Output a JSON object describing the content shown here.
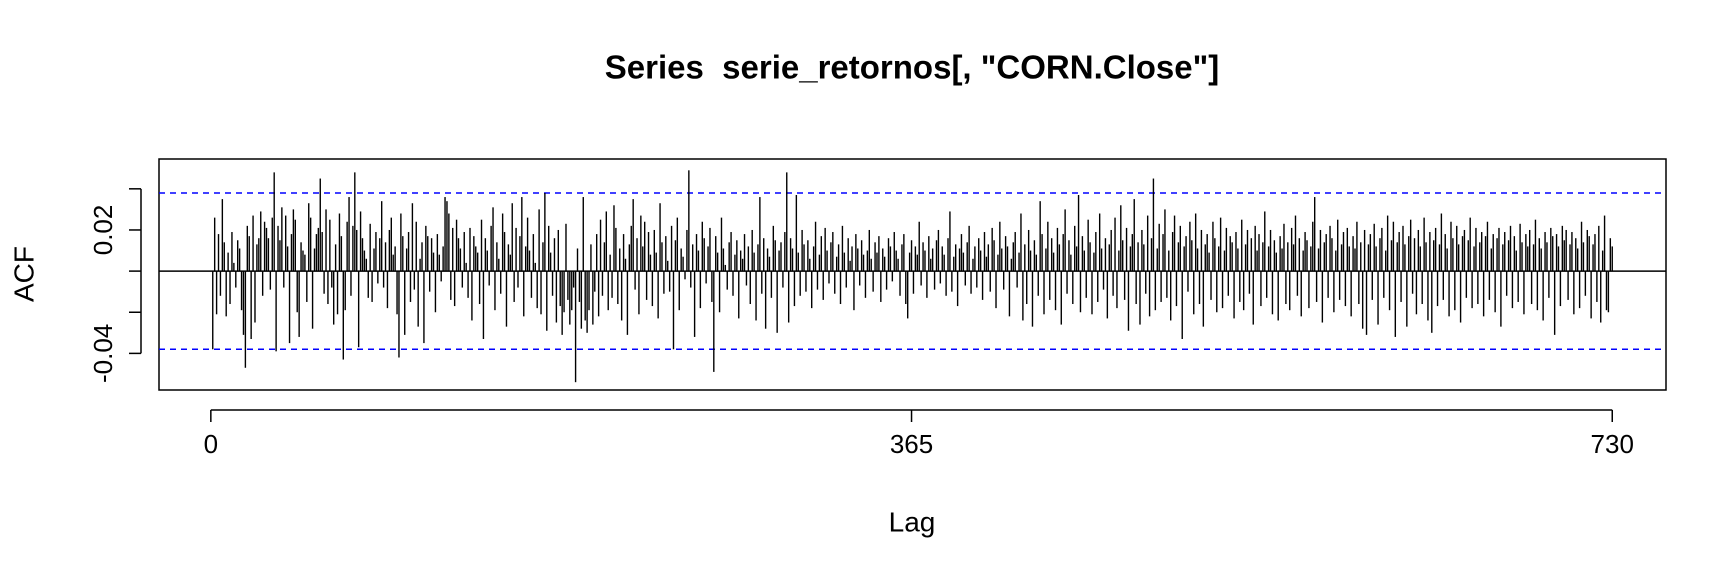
{
  "chart_data": {
    "type": "acf",
    "title": "Series  serie_retornos[, \"CORN.Close\"]",
    "x_label": "Lag",
    "y_label": "ACF",
    "xlim": [
      -27,
      758
    ],
    "ylim": [
      -0.0578,
      0.0545
    ],
    "xticks": [
      0,
      365,
      730
    ],
    "yticks": [
      -0.04,
      0.02
    ],
    "y_minor_ticks": [
      -0.02,
      0,
      0.04
    ],
    "ci_lines": [
      0.038,
      -0.038
    ],
    "ci_color": "#0000ff",
    "color": "#000000",
    "x": [
      1,
      2,
      3,
      4,
      5,
      6,
      7,
      8,
      9,
      10,
      11,
      12,
      13,
      14,
      15,
      16,
      17,
      18,
      19,
      20,
      21,
      22,
      23,
      24,
      25,
      26,
      27,
      28,
      29,
      30,
      31,
      32,
      33,
      34,
      35,
      36,
      37,
      38,
      39,
      40,
      41,
      42,
      43,
      44,
      45,
      46,
      47,
      48,
      49,
      50,
      51,
      52,
      53,
      54,
      55,
      56,
      57,
      58,
      59,
      60,
      61,
      62,
      63,
      64,
      65,
      66,
      67,
      68,
      69,
      70,
      71,
      72,
      73,
      74,
      75,
      76,
      77,
      78,
      79,
      80,
      81,
      82,
      83,
      84,
      85,
      86,
      87,
      88,
      89,
      90,
      91,
      92,
      93,
      94,
      95,
      96,
      97,
      98,
      99,
      100,
      101,
      102,
      103,
      104,
      105,
      106,
      107,
      108,
      109,
      110,
      111,
      112,
      113,
      114,
      115,
      116,
      117,
      118,
      119,
      120,
      121,
      122,
      123,
      124,
      125,
      126,
      127,
      128,
      129,
      130,
      131,
      132,
      133,
      134,
      135,
      136,
      137,
      138,
      139,
      140,
      141,
      142,
      143,
      144,
      145,
      146,
      147,
      148,
      149,
      150,
      151,
      152,
      153,
      154,
      155,
      156,
      157,
      158,
      159,
      160,
      161,
      162,
      163,
      164,
      165,
      166,
      167,
      168,
      169,
      170,
      171,
      172,
      173,
      174,
      175,
      176,
      177,
      178,
      179,
      180,
      181,
      182,
      183,
      184,
      185,
      186,
      187,
      188,
      189,
      190,
      191,
      192,
      193,
      194,
      195,
      196,
      197,
      198,
      199,
      200,
      201,
      202,
      203,
      204,
      205,
      206,
      207,
      208,
      209,
      210,
      211,
      212,
      213,
      214,
      215,
      216,
      217,
      218,
      219,
      220,
      221,
      222,
      223,
      224,
      225,
      226,
      227,
      228,
      229,
      230,
      231,
      232,
      233,
      234,
      235,
      236,
      237,
      238,
      239,
      240,
      241,
      242,
      243,
      244,
      245,
      246,
      247,
      248,
      249,
      250,
      251,
      252,
      253,
      254,
      255,
      256,
      257,
      258,
      259,
      260,
      261,
      262,
      263,
      264,
      265,
      266,
      267,
      268,
      269,
      270,
      271,
      272,
      273,
      274,
      275,
      276,
      277,
      278,
      279,
      280,
      281,
      282,
      283,
      284,
      285,
      286,
      287,
      288,
      289,
      290,
      291,
      292,
      293,
      294,
      295,
      296,
      297,
      298,
      299,
      300,
      301,
      302,
      303,
      304,
      305,
      306,
      307,
      308,
      309,
      310,
      311,
      312,
      313,
      314,
      315,
      316,
      317,
      318,
      319,
      320,
      321,
      322,
      323,
      324,
      325,
      326,
      327,
      328,
      329,
      330,
      331,
      332,
      333,
      334,
      335,
      336,
      337,
      338,
      339,
      340,
      341,
      342,
      343,
      344,
      345,
      346,
      347,
      348,
      349,
      350,
      351,
      352,
      353,
      354,
      355,
      356,
      357,
      358,
      359,
      360,
      361,
      362,
      363,
      364,
      365,
      366,
      367,
      368,
      369,
      370,
      371,
      372,
      373,
      374,
      375,
      376,
      377,
      378,
      379,
      380,
      381,
      382,
      383,
      384,
      385,
      386,
      387,
      388,
      389,
      390,
      391,
      392,
      393,
      394,
      395,
      396,
      397,
      398,
      399,
      400,
      401,
      402,
      403,
      404,
      405,
      406,
      407,
      408,
      409,
      410,
      411,
      412,
      413,
      414,
      415,
      416,
      417,
      418,
      419,
      420,
      421,
      422,
      423,
      424,
      425,
      426,
      427,
      428,
      429,
      430,
      431,
      432,
      433,
      434,
      435,
      436,
      437,
      438,
      439,
      440,
      441,
      442,
      443,
      444,
      445,
      446,
      447,
      448,
      449,
      450,
      451,
      452,
      453,
      454,
      455,
      456,
      457,
      458,
      459,
      460,
      461,
      462,
      463,
      464,
      465,
      466,
      467,
      468,
      469,
      470,
      471,
      472,
      473,
      474,
      475,
      476,
      477,
      478,
      479,
      480,
      481,
      482,
      483,
      484,
      485,
      486,
      487,
      488,
      489,
      490,
      491,
      492,
      493,
      494,
      495,
      496,
      497,
      498,
      499,
      500,
      501,
      502,
      503,
      504,
      505,
      506,
      507,
      508,
      509,
      510,
      511,
      512,
      513,
      514,
      515,
      516,
      517,
      518,
      519,
      520,
      521,
      522,
      523,
      524,
      525,
      526,
      527,
      528,
      529,
      530,
      531,
      532,
      533,
      534,
      535,
      536,
      537,
      538,
      539,
      540,
      541,
      542,
      543,
      544,
      545,
      546,
      547,
      548,
      549,
      550,
      551,
      552,
      553,
      554,
      555,
      556,
      557,
      558,
      559,
      560,
      561,
      562,
      563,
      564,
      565,
      566,
      567,
      568,
      569,
      570,
      571,
      572,
      573,
      574,
      575,
      576,
      577,
      578,
      579,
      580,
      581,
      582,
      583,
      584,
      585,
      586,
      587,
      588,
      589,
      590,
      591,
      592,
      593,
      594,
      595,
      596,
      597,
      598,
      599,
      600,
      601,
      602,
      603,
      604,
      605,
      606,
      607,
      608,
      609,
      610,
      611,
      612,
      613,
      614,
      615,
      616,
      617,
      618,
      619,
      620,
      621,
      622,
      623,
      624,
      625,
      626,
      627,
      628,
      629,
      630,
      631,
      632,
      633,
      634,
      635,
      636,
      637,
      638,
      639,
      640,
      641,
      642,
      643,
      644,
      645,
      646,
      647,
      648,
      649,
      650,
      651,
      652,
      653,
      654,
      655,
      656,
      657,
      658,
      659,
      660,
      661,
      662,
      663,
      664,
      665,
      666,
      667,
      668,
      669,
      670,
      671,
      672,
      673,
      674,
      675,
      676,
      677,
      678,
      679,
      680,
      681,
      682,
      683,
      684,
      685,
      686,
      687,
      688,
      689,
      690,
      691,
      692,
      693,
      694,
      695,
      696,
      697,
      698,
      699,
      700,
      701,
      702,
      703,
      704,
      705,
      706,
      707,
      708,
      709,
      710,
      711,
      712,
      713,
      714,
      715,
      716,
      717,
      718,
      719,
      720,
      721,
      722,
      723,
      724,
      725,
      726,
      727,
      728,
      729,
      730
    ],
    "values": [
      -0.038,
      0.026,
      -0.021,
      0.018,
      -0.012,
      0.035,
      0.014,
      -0.022,
      0.009,
      -0.016,
      0.019,
      0.004,
      -0.008,
      0.015,
      0.011,
      -0.019,
      -0.031,
      -0.047,
      0.022,
      0.017,
      -0.033,
      0.027,
      -0.025,
      0.013,
      0.016,
      0.029,
      -0.012,
      0.024,
      0.021,
      0.016,
      -0.009,
      0.026,
      0.048,
      -0.039,
      0.022,
      0.015,
      0.031,
      -0.008,
      0.027,
      0.012,
      -0.035,
      0.018,
      0.03,
      0.025,
      -0.02,
      -0.032,
      0.014,
      0.01,
      0.008,
      -0.015,
      0.033,
      0.026,
      -0.028,
      0.011,
      0.018,
      0.021,
      0.045,
      0.019,
      -0.011,
      0.03,
      -0.016,
      0.025,
      -0.008,
      -0.026,
      0.013,
      -0.021,
      0.028,
      0.017,
      -0.043,
      -0.019,
      0.024,
      0.036,
      -0.012,
      0.022,
      0.048,
      0.02,
      -0.037,
      0.029,
      0.016,
      0.01,
      0.006,
      -0.013,
      0.023,
      -0.015,
      0.011,
      0.019,
      -0.006,
      0.016,
      0.034,
      -0.008,
      0.014,
      -0.018,
      0.02,
      0.026,
      0.008,
      0.012,
      -0.021,
      -0.042,
      0.028,
      0.017,
      -0.031,
      0.011,
      0.019,
      -0.015,
      0.033,
      -0.009,
      0.024,
      -0.027,
      0.006,
      0.014,
      -0.035,
      0.022,
      0.017,
      -0.01,
      0.016,
      0.009,
      -0.02,
      0.018,
      0.008,
      -0.005,
      0.012,
      0.036,
      0.034,
      0.028,
      -0.014,
      0.021,
      -0.017,
      0.025,
      0.016,
      0.011,
      -0.008,
      0.019,
      0.004,
      -0.013,
      0.021,
      -0.024,
      0.017,
      0.012,
      0.009,
      -0.016,
      0.025,
      -0.033,
      0.016,
      0.01,
      -0.007,
      0.022,
      0.031,
      -0.019,
      0.014,
      0.006,
      -0.011,
      0.028,
      0.019,
      -0.027,
      0.013,
      0.008,
      0.033,
      -0.015,
      0.021,
      -0.008,
      0.017,
      0.036,
      -0.022,
      0.012,
      0.026,
      0.01,
      -0.013,
      0.018,
      0.004,
      -0.018,
      0.03,
      -0.021,
      0.014,
      0.038,
      -0.029,
      0.022,
      0.009,
      -0.012,
      0.016,
      -0.025,
      0.02,
      -0.017,
      -0.031,
      -0.02,
      0.023,
      -0.014,
      -0.026,
      -0.019,
      -0.008,
      -0.054,
      0.011,
      -0.015,
      -0.028,
      0.036,
      -0.024,
      -0.03,
      -0.019,
      0.013,
      -0.026,
      -0.01,
      0.018,
      -0.022,
      0.025,
      -0.012,
      0.014,
      0.029,
      -0.019,
      0.008,
      -0.013,
      0.032,
      0.021,
      -0.016,
      0.011,
      -0.024,
      0.018,
      0.006,
      -0.031,
      0.013,
      0.022,
      0.035,
      -0.009,
      0.016,
      -0.021,
      0.027,
      0.012,
      0.024,
      -0.014,
      0.019,
      0.008,
      -0.017,
      0.02,
      0.009,
      -0.023,
      0.033,
      0.014,
      -0.011,
      0.017,
      0.005,
      -0.01,
      0.022,
      -0.038,
      0.015,
      0.026,
      -0.019,
      0.011,
      0.007,
      -0.004,
      0.02,
      0.049,
      -0.008,
      0.013,
      -0.032,
      0.018,
      0.01,
      -0.018,
      0.024,
      0.016,
      -0.006,
      0.012,
      0.021,
      -0.015,
      -0.049,
      0.017,
      0.009,
      -0.02,
      0.026,
      0.011,
      0.003,
      -0.009,
      0.014,
      0.019,
      -0.012,
      0.008,
      0.015,
      -0.023,
      0.01,
      0.006,
      0.018,
      -0.007,
      0.012,
      -0.016,
      0.02,
      0.009,
      -0.024,
      0.013,
      0.036,
      -0.011,
      0.016,
      -0.028,
      0.011,
      0.007,
      -0.013,
      0.022,
      0.015,
      -0.03,
      0.01,
      0.014,
      -0.008,
      0.019,
      0.048,
      -0.025,
      0.016,
      0.011,
      -0.017,
      0.037,
      0.009,
      -0.012,
      0.02,
      0.013,
      -0.01,
      0.015,
      0.006,
      -0.018,
      0.012,
      0.024,
      -0.009,
      0.008,
      0.017,
      -0.014,
      0.021,
      0.01,
      -0.006,
      0.014,
      0.019,
      -0.011,
      0.007,
      0.013,
      -0.016,
      0.022,
      0.009,
      -0.008,
      0.016,
      0.005,
      0.012,
      -0.019,
      0.018,
      0.011,
      -0.007,
      0.015,
      0.008,
      -0.013,
      0.01,
      0.02,
      0.006,
      -0.01,
      0.014,
      0.009,
      0.017,
      -0.015,
      0.011,
      0.007,
      -0.009,
      0.016,
      0.012,
      -0.005,
      0.019,
      0.01,
      0.006,
      -0.012,
      0.013,
      0.018,
      -0.016,
      -0.023,
      0.009,
      0.015,
      -0.011,
      0.012,
      0.008,
      0.024,
      -0.007,
      0.014,
      0.01,
      -0.013,
      0.017,
      0.006,
      0.011,
      -0.009,
      0.015,
      0.02,
      -0.006,
      0.012,
      0.008,
      -0.012,
      0.016,
      0.029,
      -0.01,
      0.007,
      0.013,
      -0.017,
      0.011,
      0.018,
      0.009,
      -0.007,
      0.014,
      0.022,
      -0.011,
      0.006,
      0.012,
      -0.008,
      0.016,
      0.01,
      -0.014,
      0.019,
      0.007,
      0.013,
      -0.01,
      0.021,
      0.015,
      -0.018,
      0.008,
      0.024,
      0.011,
      -0.009,
      0.017,
      0.012,
      -0.022,
      0.006,
      0.014,
      0.019,
      -0.008,
      0.009,
      0.028,
      -0.024,
      0.013,
      -0.016,
      0.02,
      0.01,
      -0.027,
      0.015,
      0.008,
      -0.012,
      0.034,
      0.018,
      -0.021,
      0.011,
      0.024,
      -0.014,
      0.016,
      0.009,
      -0.019,
      0.021,
      0.013,
      -0.026,
      0.018,
      0.03,
      -0.011,
      0.015,
      0.008,
      -0.016,
      0.022,
      0.012,
      0.037,
      -0.02,
      0.017,
      0.01,
      -0.013,
      0.025,
      0.014,
      -0.021,
      0.009,
      0.019,
      -0.015,
      0.028,
      0.011,
      -0.009,
      0.016,
      -0.023,
      0.013,
      0.02,
      -0.012,
      0.026,
      -0.018,
      0.01,
      0.032,
      0.015,
      -0.014,
      0.021,
      -0.029,
      0.012,
      0.018,
      0.035,
      -0.016,
      0.014,
      -0.026,
      0.02,
      0.013,
      -0.011,
      0.027,
      -0.022,
      0.016,
      0.045,
      -0.019,
      0.011,
      0.023,
      -0.015,
      0.018,
      0.03,
      -0.013,
      0.01,
      -0.024,
      0.019,
      0.027,
      -0.017,
      0.014,
      0.022,
      -0.033,
      0.012,
      0.017,
      -0.01,
      0.024,
      0.015,
      -0.021,
      0.028,
      0.011,
      -0.016,
      0.02,
      -0.027,
      0.013,
      0.018,
      0.009,
      -0.014,
      0.024,
      0.016,
      -0.02,
      0.012,
      0.026,
      -0.018,
      0.01,
      0.021,
      -0.012,
      0.017,
      0.014,
      -0.023,
      0.019,
      0.011,
      -0.015,
      0.025,
      -0.019,
      0.013,
      0.02,
      -0.011,
      0.016,
      -0.026,
      0.022,
      0.01,
      0.018,
      -0.017,
      0.014,
      0.029,
      -0.013,
      0.012,
      0.02,
      -0.021,
      0.015,
      0.009,
      -0.024,
      0.017,
      0.011,
      0.023,
      -0.016,
      0.014,
      -0.019,
      0.021,
      0.013,
      0.027,
      -0.012,
      0.016,
      -0.022,
      0.01,
      0.019,
      0.015,
      -0.018,
      0.012,
      0.024,
      0.036,
      -0.015,
      0.011,
      0.02,
      -0.025,
      0.014,
      0.018,
      -0.013,
      0.022,
      0.016,
      -0.02,
      0.01,
      0.025,
      -0.014,
      0.013,
      0.019,
      -0.017,
      0.021,
      0.012,
      -0.022,
      0.017,
      0.011,
      0.024,
      -0.016,
      0.014,
      -0.028,
      0.02,
      -0.031,
      0.013,
      0.018,
      -0.014,
      0.023,
      0.012,
      -0.026,
      0.016,
      0.021,
      -0.013,
      0.01,
      0.027,
      -0.019,
      0.015,
      0.024,
      -0.032,
      0.014,
      0.019,
      -0.015,
      0.022,
      0.013,
      -0.027,
      0.017,
      0.025,
      -0.011,
      0.016,
      -0.021,
      0.02,
      0.012,
      -0.016,
      0.026,
      0.014,
      -0.024,
      0.019,
      -0.03,
      0.015,
      0.021,
      -0.017,
      0.013,
      0.028,
      -0.014,
      0.018,
      0.011,
      -0.022,
      0.024,
      0.016,
      -0.019,
      0.022,
      0.013,
      -0.025,
      0.017,
      0.02,
      -0.013,
      0.015,
      0.026,
      -0.018,
      0.012,
      0.021,
      -0.016,
      0.014,
      0.019,
      -0.022,
      0.017,
      0.024,
      -0.014,
      0.011,
      0.018,
      -0.02,
      0.016,
      0.021,
      -0.027,
      0.013,
      0.019,
      -0.012,
      0.015,
      0.022,
      -0.018,
      0.017,
      0.01,
      -0.015,
      0.023,
      0.014,
      -0.021,
      0.018,
      0.012,
      0.02,
      -0.016,
      0.013,
      0.025,
      -0.019,
      0.016,
      0.011,
      -0.024,
      0.019,
      0.014,
      -0.013,
      0.021,
      0.017,
      -0.031,
      0.018,
      0.012,
      -0.017,
      0.022,
      0.015,
      0.02,
      -0.014,
      0.013,
      0.019,
      -0.021,
      0.016,
      0.011,
      -0.018,
      0.024,
      0.014,
      -0.012,
      0.02,
      0.017,
      -0.023,
      0.013,
      0.018,
      -0.015,
      0.022,
      -0.025,
      0.01,
      0.027,
      -0.019,
      -0.02,
      0.016,
      0.012
    ]
  }
}
